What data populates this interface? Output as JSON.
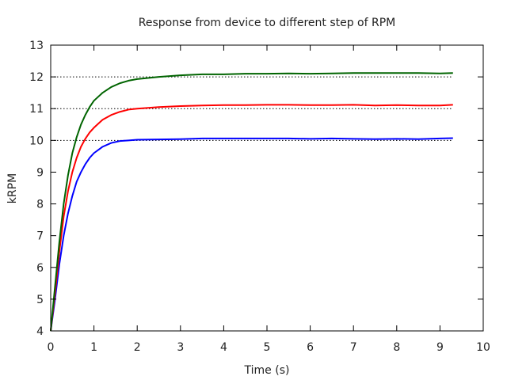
{
  "chart_data": {
    "type": "line",
    "title": "Response from device to different step of RPM",
    "xlabel": "Time (s)",
    "ylabel": "kRPM",
    "xlim": [
      0,
      10
    ],
    "ylim": [
      4,
      13
    ],
    "xticks": [
      "0",
      "1",
      "2",
      "3",
      "4",
      "5",
      "6",
      "7",
      "8",
      "9",
      "10"
    ],
    "yticks": [
      "4",
      "5",
      "6",
      "7",
      "8",
      "9",
      "10",
      "11",
      "12",
      "13"
    ],
    "reference_lines": [
      {
        "y": 10,
        "style": "dotted",
        "x_range": [
          0,
          9.3
        ],
        "color": "#000000"
      },
      {
        "y": 11,
        "style": "dotted",
        "x_range": [
          0,
          9.3
        ],
        "color": "#000000"
      },
      {
        "y": 12,
        "style": "dotted",
        "x_range": [
          0,
          9.3
        ],
        "color": "#000000"
      }
    ],
    "series": [
      {
        "color": "#0000ff",
        "x": [
          0,
          0.1,
          0.2,
          0.3,
          0.4,
          0.5,
          0.6,
          0.7,
          0.8,
          0.9,
          1.0,
          1.2,
          1.4,
          1.6,
          1.8,
          2.0,
          2.5,
          3.0,
          3.5,
          4.0,
          4.5,
          5.0,
          5.5,
          6.0,
          6.5,
          7.0,
          7.5,
          8.0,
          8.5,
          9.0,
          9.3
        ],
        "y": [
          4.0,
          5.0,
          6.1,
          7.0,
          7.7,
          8.25,
          8.7,
          9.0,
          9.25,
          9.45,
          9.6,
          9.8,
          9.92,
          9.98,
          10.0,
          10.02,
          10.03,
          10.04,
          10.06,
          10.06,
          10.06,
          10.06,
          10.06,
          10.05,
          10.06,
          10.05,
          10.04,
          10.05,
          10.04,
          10.06,
          10.07
        ]
      },
      {
        "color": "#ff0000",
        "x": [
          0,
          0.1,
          0.2,
          0.3,
          0.4,
          0.5,
          0.6,
          0.7,
          0.8,
          0.9,
          1.0,
          1.2,
          1.4,
          1.6,
          1.8,
          2.0,
          2.5,
          3.0,
          3.5,
          4.0,
          4.5,
          5.0,
          5.5,
          6.0,
          6.5,
          7.0,
          7.5,
          8.0,
          8.5,
          9.0,
          9.3
        ],
        "y": [
          4.0,
          5.2,
          6.5,
          7.6,
          8.4,
          9.0,
          9.45,
          9.8,
          10.05,
          10.25,
          10.4,
          10.65,
          10.8,
          10.9,
          10.97,
          11.0,
          11.05,
          11.08,
          11.1,
          11.11,
          11.11,
          11.12,
          11.12,
          11.11,
          11.11,
          11.12,
          11.1,
          11.11,
          11.1,
          11.1,
          11.12
        ]
      },
      {
        "color": "#006400",
        "x": [
          0,
          0.1,
          0.2,
          0.3,
          0.4,
          0.5,
          0.6,
          0.7,
          0.8,
          0.9,
          1.0,
          1.2,
          1.4,
          1.6,
          1.8,
          2.0,
          2.5,
          3.0,
          3.5,
          4.0,
          4.5,
          5.0,
          5.5,
          6.0,
          6.5,
          7.0,
          7.5,
          8.0,
          8.5,
          9.0,
          9.3
        ],
        "y": [
          4.0,
          5.4,
          6.8,
          8.0,
          8.9,
          9.6,
          10.1,
          10.5,
          10.8,
          11.05,
          11.25,
          11.5,
          11.68,
          11.8,
          11.88,
          11.93,
          12.0,
          12.05,
          12.08,
          12.08,
          12.1,
          12.1,
          12.11,
          12.1,
          12.11,
          12.12,
          12.12,
          12.12,
          12.12,
          12.11,
          12.12
        ]
      }
    ],
    "grid": false,
    "legend": "none"
  }
}
